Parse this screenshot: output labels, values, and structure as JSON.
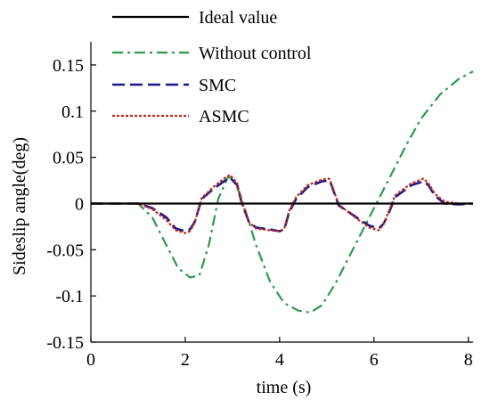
{
  "chart_data": {
    "type": "line",
    "title": "",
    "xlabel": "time (s)",
    "ylabel": "Sideslip angle(deg)",
    "xlim": [
      0,
      8.1
    ],
    "ylim": [
      -0.15,
      0.175
    ],
    "xticks": [
      0,
      2,
      4,
      6,
      8
    ],
    "yticks": [
      -0.15,
      -0.1,
      -0.05,
      0,
      0.05,
      0.1,
      0.15
    ],
    "xtick_labels": [
      "0",
      "2",
      "4",
      "6",
      "8"
    ],
    "ytick_labels": [
      "-0.15",
      "-0.1",
      "-0.05",
      "0",
      "0.05",
      "0.1",
      "0.15"
    ],
    "grid": false,
    "legend_position": "top-left",
    "series": [
      {
        "name": "Ideal value",
        "color": "#000000",
        "dash": "solid",
        "x": [
          0,
          8.1
        ],
        "y": [
          0,
          0
        ]
      },
      {
        "name": "Without control",
        "color": "#2e9a4a",
        "dash": "dashdot",
        "x": [
          0,
          1.0,
          1.3,
          1.6,
          1.85,
          2.1,
          2.3,
          2.5,
          2.7,
          2.9,
          3.0,
          3.2,
          3.5,
          3.8,
          4.1,
          4.4,
          4.65,
          4.9,
          5.2,
          5.5,
          5.8,
          6.1,
          6.4,
          6.7,
          7.0,
          7.4,
          7.8,
          8.1
        ],
        "y": [
          0,
          0,
          -0.015,
          -0.045,
          -0.07,
          -0.08,
          -0.078,
          -0.045,
          0.005,
          0.028,
          0.028,
          0.005,
          -0.045,
          -0.085,
          -0.108,
          -0.116,
          -0.118,
          -0.11,
          -0.085,
          -0.055,
          -0.025,
          0.005,
          0.035,
          0.065,
          0.092,
          0.118,
          0.135,
          0.143
        ]
      },
      {
        "name": "SMC",
        "color": "#1a1a8c",
        "dash": "dashed",
        "x": [
          0,
          1.0,
          1.3,
          1.6,
          1.8,
          2.0,
          2.1,
          2.2,
          2.35,
          2.6,
          2.85,
          2.95,
          3.1,
          3.2,
          3.35,
          3.5,
          3.8,
          4.0,
          4.1,
          4.2,
          4.35,
          4.6,
          4.9,
          5.05,
          5.1,
          5.25,
          5.6,
          5.9,
          6.1,
          6.2,
          6.3,
          6.45,
          6.8,
          7.05,
          7.15,
          7.3,
          7.5,
          7.8,
          8.1
        ],
        "y": [
          0,
          0,
          -0.005,
          -0.015,
          -0.027,
          -0.03,
          -0.028,
          -0.02,
          0.005,
          0.016,
          0.025,
          0.028,
          0.02,
          0.0,
          -0.02,
          -0.026,
          -0.028,
          -0.03,
          -0.028,
          -0.01,
          0.005,
          0.018,
          0.024,
          0.025,
          0.02,
          -0.002,
          -0.014,
          -0.024,
          -0.027,
          -0.022,
          -0.012,
          0.007,
          0.02,
          0.024,
          0.02,
          0.008,
          0.0,
          -0.001,
          0
        ]
      },
      {
        "name": "ASMC",
        "color": "#c0291f",
        "dash": "dotted",
        "x": [
          0,
          1.0,
          1.3,
          1.6,
          1.8,
          2.0,
          2.1,
          2.2,
          2.35,
          2.6,
          2.85,
          2.95,
          3.1,
          3.2,
          3.35,
          3.5,
          3.8,
          4.0,
          4.1,
          4.2,
          4.35,
          4.6,
          4.9,
          5.05,
          5.1,
          5.25,
          5.6,
          5.9,
          6.1,
          6.2,
          6.3,
          6.45,
          6.8,
          7.05,
          7.15,
          7.3,
          7.5,
          7.8,
          8.1
        ],
        "y": [
          0,
          0,
          -0.006,
          -0.018,
          -0.029,
          -0.032,
          -0.03,
          -0.021,
          0.006,
          0.018,
          0.028,
          0.031,
          0.022,
          0.002,
          -0.02,
          -0.027,
          -0.029,
          -0.03,
          -0.027,
          -0.008,
          0.007,
          0.02,
          0.026,
          0.027,
          0.021,
          -0.001,
          -0.015,
          -0.026,
          -0.029,
          -0.023,
          -0.01,
          0.009,
          0.022,
          0.027,
          0.022,
          0.01,
          0.002,
          0.0,
          0
        ]
      }
    ]
  }
}
